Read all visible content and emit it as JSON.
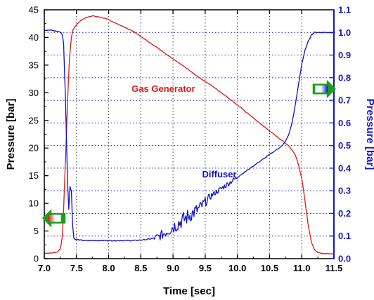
{
  "colors": {
    "left_series": "#e01818",
    "right_series": "#1010d0",
    "grid": "#3a3a3a",
    "arrow_green": "#18a018",
    "right_axis": "#1414c8"
  },
  "chart_data": {
    "type": "line",
    "xlabel": "Time [sec]",
    "ylabel_left": "Pressure [bar]",
    "ylabel_right": "Pressure [bar]",
    "xlim": [
      7.0,
      11.5
    ],
    "ylim_left": [
      0,
      45
    ],
    "ylim_right": [
      0.0,
      1.1
    ],
    "x_ticks": [
      "7.0",
      "7.5",
      "8.0",
      "8.5",
      "9.0",
      "9.5",
      "10.0",
      "10.5",
      "11.0",
      "11.5"
    ],
    "y_ticks_left": [
      "0",
      "5",
      "10",
      "15",
      "20",
      "25",
      "30",
      "35",
      "40",
      "45"
    ],
    "y_ticks_right": [
      "0.0",
      "0.1",
      "0.2",
      "0.3",
      "0.4",
      "0.5",
      "0.6",
      "0.7",
      "0.8",
      "0.9",
      "1.0",
      "1.1"
    ],
    "grid": true,
    "series": [
      {
        "name": "Gas Generator",
        "axis": "left",
        "x": [
          7.0,
          7.1,
          7.2,
          7.25,
          7.28,
          7.3,
          7.33,
          7.36,
          7.39,
          7.42,
          7.45,
          7.5,
          7.55,
          7.6,
          7.65,
          7.7,
          7.75,
          7.8,
          7.9,
          8.0,
          8.2,
          8.4,
          8.6,
          8.8,
          9.0,
          9.2,
          9.4,
          9.6,
          9.8,
          10.0,
          10.2,
          10.4,
          10.6,
          10.8,
          10.9,
          10.95,
          11.0,
          11.05,
          11.1,
          11.15,
          11.2,
          11.25,
          11.3,
          11.4,
          11.5
        ],
        "y": [
          1,
          1,
          1.2,
          1.8,
          4,
          9,
          18,
          28,
          36,
          40,
          41.5,
          42.3,
          42.9,
          43.3,
          43.6,
          43.8,
          43.9,
          43.8,
          43.6,
          43.2,
          42.1,
          41.0,
          39.4,
          37.8,
          36.1,
          34.5,
          32.8,
          31.3,
          29.6,
          27.8,
          25.9,
          24.0,
          22.2,
          20.4,
          18.8,
          17.0,
          14.5,
          10.5,
          6.0,
          3.0,
          1.6,
          1.1,
          1.0,
          0.9,
          0.9
        ]
      },
      {
        "name": "Diffuser",
        "axis": "right",
        "x": [
          7.0,
          7.1,
          7.2,
          7.26,
          7.28,
          7.3,
          7.33,
          7.36,
          7.38,
          7.4,
          7.42,
          7.44,
          7.46,
          7.48,
          7.5,
          7.6,
          7.8,
          8.0,
          8.2,
          8.4,
          8.6,
          8.7,
          8.8,
          8.9,
          9.0,
          9.1,
          9.2,
          9.3,
          9.4,
          9.5,
          9.6,
          9.7,
          9.8,
          9.9,
          10.0,
          10.1,
          10.2,
          10.3,
          10.4,
          10.5,
          10.6,
          10.7,
          10.75,
          10.8,
          10.85,
          10.9,
          10.95,
          11.0,
          11.05,
          11.1,
          11.15,
          11.2,
          11.3,
          11.5
        ],
        "y": [
          1.01,
          1.01,
          1.005,
          1.0,
          0.99,
          0.95,
          0.7,
          0.35,
          0.22,
          0.32,
          0.3,
          0.15,
          0.09,
          0.085,
          0.085,
          0.08,
          0.08,
          0.08,
          0.08,
          0.08,
          0.085,
          0.09,
          0.1,
          0.12,
          0.14,
          0.16,
          0.18,
          0.2,
          0.22,
          0.25,
          0.28,
          0.3,
          0.32,
          0.34,
          0.36,
          0.38,
          0.4,
          0.42,
          0.44,
          0.46,
          0.48,
          0.5,
          0.52,
          0.55,
          0.6,
          0.68,
          0.77,
          0.86,
          0.92,
          0.96,
          0.99,
          1.0,
          1.0,
          1.0
        ]
      }
    ],
    "annotations": [
      {
        "text": "Gas Generator",
        "x": 8.85,
        "y": 30.2,
        "axis": "left",
        "color": "#e01818"
      },
      {
        "text": "Diffuser",
        "x": 9.72,
        "y": 0.36,
        "axis": "right",
        "color": "#1010d0"
      }
    ],
    "arrows": [
      {
        "direction": "left",
        "x": 7.15,
        "y": 7.3,
        "axis": "left",
        "meaning": "left-axis"
      },
      {
        "direction": "right",
        "x": 11.35,
        "y": 0.75,
        "axis": "right",
        "meaning": "right-axis"
      }
    ],
    "noise": [
      {
        "series": "Diffuser",
        "x_from": 8.7,
        "x_to": 10.0,
        "amplitude_right": [
          0.012,
          0.035
        ]
      }
    ]
  }
}
